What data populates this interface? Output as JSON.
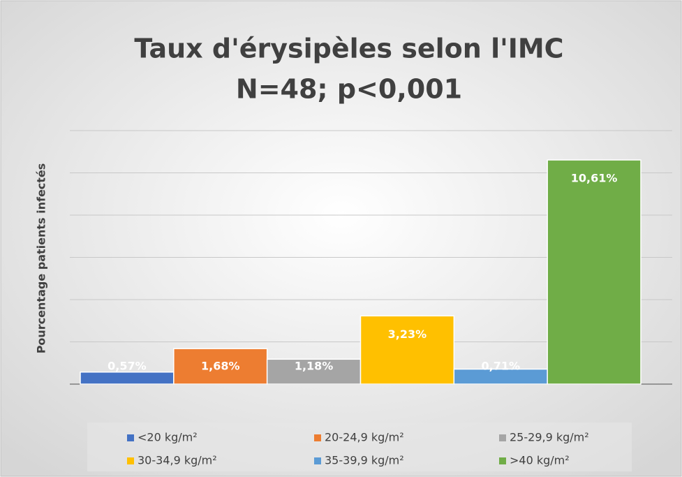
{
  "chart_data": {
    "type": "bar",
    "title": "Taux d'érysipèles selon l'IMC",
    "subtitle": "N=48; p<0,001",
    "y_label": "Pourcentage patients infectés",
    "categories": [
      "<20 kg/m²",
      "20-24,9 kg/m²",
      "25-29,9 kg/m²",
      "30-34,9 kg/m²",
      "35-39,9 kg/m²",
      ">40 kg/m²"
    ],
    "values": [
      0.57,
      1.68,
      1.18,
      3.23,
      0.71,
      10.61
    ],
    "value_labels": [
      "0,57%",
      "1,68%",
      "1,18%",
      "3,23%",
      "0,71%",
      "10,61%"
    ],
    "colors": [
      "#4472c4",
      "#ed7d31",
      "#a5a5a5",
      "#ffc000",
      "#5b9bd5",
      "#70ad47"
    ],
    "ylim": [
      0,
      12
    ],
    "yticks": [
      0,
      2,
      4,
      6,
      8,
      10,
      12
    ],
    "grid": true,
    "legend": "bottom"
  }
}
